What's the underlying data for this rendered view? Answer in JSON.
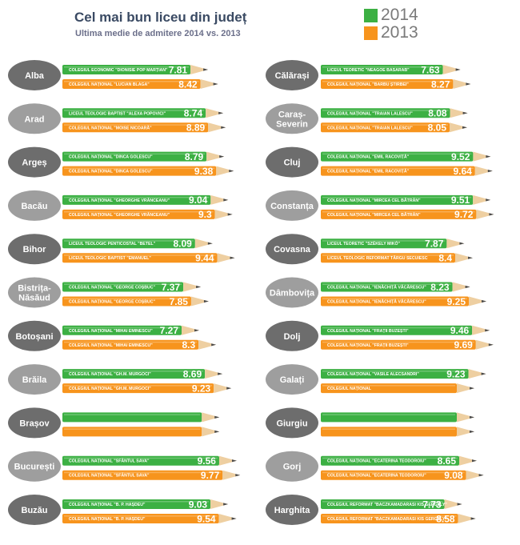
{
  "header": {
    "title": "Cel mai bun liceu din județ",
    "subtitle": "Ultima medie de admitere 2014 vs. 2013"
  },
  "legend": [
    {
      "label": "2014",
      "color": "#3cb043"
    },
    {
      "label": "2013",
      "color": "#f7941d"
    }
  ],
  "colors": {
    "bar_2014": "#3cb043",
    "bar_2013": "#f7941d",
    "wood": "#eecfa1",
    "lead": "#4a4a4a",
    "oval_dark": "#6d6d6d",
    "oval_light": "#9e9e9e"
  },
  "chart_data": {
    "type": "bar",
    "title": "Cel mai bun liceu din județ",
    "subtitle": "Ultima medie de admitere 2014 vs. 2013",
    "categories": [
      "Alba",
      "Arad",
      "Argeș",
      "Bacău",
      "Bihor",
      "Bistrița-Năsăud",
      "Botoșani",
      "Brăila",
      "Brașov",
      "București",
      "Buzău",
      "Călărași",
      "Caraș-Severin",
      "Cluj",
      "Constanța",
      "Covasna",
      "Dâmbovița",
      "Dolj",
      "Galați",
      "Giurgiu",
      "Gorj",
      "Harghita"
    ],
    "series": [
      {
        "name": "2014",
        "values": [
          7.81,
          8.74,
          8.79,
          9.04,
          8.09,
          7.37,
          7.27,
          8.69,
          null,
          9.56,
          9.03,
          7.63,
          8.08,
          9.52,
          9.51,
          7.87,
          8.23,
          9.46,
          9.23,
          null,
          8.65,
          7.73
        ]
      },
      {
        "name": "2013",
        "values": [
          8.42,
          8.89,
          9.38,
          9.3,
          9.44,
          7.85,
          8.3,
          9.23,
          null,
          9.77,
          9.54,
          8.27,
          8.05,
          9.64,
          9.72,
          8.4,
          9.25,
          9.69,
          null,
          null,
          9.08,
          8.58
        ]
      }
    ],
    "entries": [
      {
        "county": "Alba",
        "school_2014": "COLEGIUL ECONOMIC \"DIONISIE POP MARȚIAN\"",
        "value_2014": 7.81,
        "school_2013": "COLEGIUL NAȚIONAL \"LUCIAN BLAGA\"",
        "value_2013": 8.42
      },
      {
        "county": "Arad",
        "school_2014": "LICEUL TEOLOGIC BAPTIST \"ALEXA POPOVICI\"",
        "value_2014": 8.74,
        "school_2013": "COLEGIUL NAȚIONAL \"MOISE NICOARĂ\"",
        "value_2013": 8.89
      },
      {
        "county": "Argeș",
        "school_2014": "COLEGIUL NAȚIONAL \"DINCA GOLESCU\"",
        "value_2014": 8.79,
        "school_2013": "COLEGIUL NAȚIONAL \"DINCA GOLESCU\"",
        "value_2013": 9.38
      },
      {
        "county": "Bacău",
        "school_2014": "COLEGIUL NAȚIONAL \"GHEORGHE VRÂNCEANU\"",
        "value_2014": 9.04,
        "school_2013": "COLEGIUL NAȚIONAL \"GHEORGHE VRÂNCEANU\"",
        "value_2013": 9.3
      },
      {
        "county": "Bihor",
        "school_2014": "LICEUL TEOLOGIC PENTICOSTAL \"BETEL\"",
        "value_2014": 8.09,
        "school_2013": "LICEUL TEOLOGIC BAPTIST \"EMANUEL\"",
        "value_2013": 9.44
      },
      {
        "county": "Bistrița-Năsăud",
        "school_2014": "COLEGIUL NAȚIONAL \"GEORGE COȘBUC\"",
        "value_2014": 7.37,
        "school_2013": "COLEGIUL NAȚIONAL \"GEORGE COȘBUC\"",
        "value_2013": 7.85
      },
      {
        "county": "Botoșani",
        "school_2014": "COLEGIUL NAȚIONAL \"MIHAI EMINESCU\"",
        "value_2014": 7.27,
        "school_2013": "COLEGIUL NAȚIONAL \"MIHAI EMINESCU\"",
        "value_2013": 8.3
      },
      {
        "county": "Brăila",
        "school_2014": "COLEGIUL NAȚIONAL \"GH.M. MURGOCI\"",
        "value_2014": 8.69,
        "school_2013": "COLEGIUL NAȚIONAL \"GH.M. MURGOCI\"",
        "value_2013": 9.23
      },
      {
        "county": "Brașov",
        "school_2014": "",
        "value_2014": null,
        "school_2013": "",
        "value_2013": null
      },
      {
        "county": "București",
        "school_2014": "COLEGIUL NAȚIONAL \"SFÂNTUL SAVA\"",
        "value_2014": 9.56,
        "school_2013": "COLEGIUL NAȚIONAL \"SFÂNTUL SAVA\"",
        "value_2013": 9.77
      },
      {
        "county": "Buzău",
        "school_2014": "COLEGIUL NAȚIONAL \"B. P. HAȘDEU\"",
        "value_2014": 9.03,
        "school_2013": "COLEGIUL NAȚIONAL \"B. P. HAȘDEU\"",
        "value_2013": 9.54
      },
      {
        "county": "Călărași",
        "school_2014": "LICEUL TEORETIC \"NEAGOE BASARAB\"",
        "value_2014": 7.63,
        "school_2013": "COLEGIUL NAȚIONAL \"BARBU ȘTIRBEI\"",
        "value_2013": 8.27
      },
      {
        "county": "Caraș-Severin",
        "school_2014": "COLEGIUL NAȚIONAL \"TRAIAN LALESCU\"",
        "value_2014": 8.08,
        "school_2013": "COLEGIUL NAȚIONAL \"TRAIAN LALESCU\"",
        "value_2013": 8.05
      },
      {
        "county": "Cluj",
        "school_2014": "COLEGIUL NAȚIONAL \"EMIL RACOVIȚĂ\"",
        "value_2014": 9.52,
        "school_2013": "COLEGIUL NAȚIONAL \"EMIL RACOVIȚĂ\"",
        "value_2013": 9.64
      },
      {
        "county": "Constanța",
        "school_2014": "COLEGIUL NAȚIONAL \"MIRCEA CEL BĂTRÂN\"",
        "value_2014": 9.51,
        "school_2013": "COLEGIUL NAȚIONAL \"MIRCEA CEL BĂTRÂN\"",
        "value_2013": 9.72
      },
      {
        "county": "Covasna",
        "school_2014": "LICEUL TEORETIC \"SZÉKELY MIKÓ\"",
        "value_2014": 7.87,
        "school_2013": "LICEUL TEOLOGIC REFORMAT TÂRGU SECUIESC",
        "value_2013": 8.4
      },
      {
        "county": "Dâmbovița",
        "school_2014": "COLEGIUL NAȚIONAL \"IENĂCHIȚĂ VĂCĂRESCU\"",
        "value_2014": 8.23,
        "school_2013": "COLEGIUL NAȚIONAL \"IENĂCHIȚĂ VĂCĂRESCU\"",
        "value_2013": 9.25
      },
      {
        "county": "Dolj",
        "school_2014": "COLEGIUL NAȚIONAL \"FRAȚII BUZEȘTI\"",
        "value_2014": 9.46,
        "school_2013": "COLEGIUL NAȚIONAL \"FRAȚII BUZEȘTI\"",
        "value_2013": 9.69
      },
      {
        "county": "Galați",
        "school_2014": "COLEGIUL NAȚIONAL \"VASILE ALECSANDRI\"",
        "value_2014": 9.23,
        "school_2013": "COLEGIUL NAȚIONAL",
        "value_2013": null
      },
      {
        "county": "Giurgiu",
        "school_2014": "",
        "value_2014": null,
        "school_2013": "",
        "value_2013": null
      },
      {
        "county": "Gorj",
        "school_2014": "COLEGIUL NAȚIONAL \"ECATERINA TEODOROIU\"",
        "value_2014": 8.65,
        "school_2013": "COLEGIUL NAȚIONAL \"ECATERINA TEODOROIU\"",
        "value_2013": 9.08
      },
      {
        "county": "Harghita",
        "school_2014": "COLEGIUL REFORMAT \"BACZKAMADARASI KIS GERGELY\"",
        "value_2014": 7.73,
        "school_2013": "COLEGIUL REFORMAT \"BACZKAMADARASI KIS GERGELY\"",
        "value_2013": 8.58
      }
    ]
  }
}
